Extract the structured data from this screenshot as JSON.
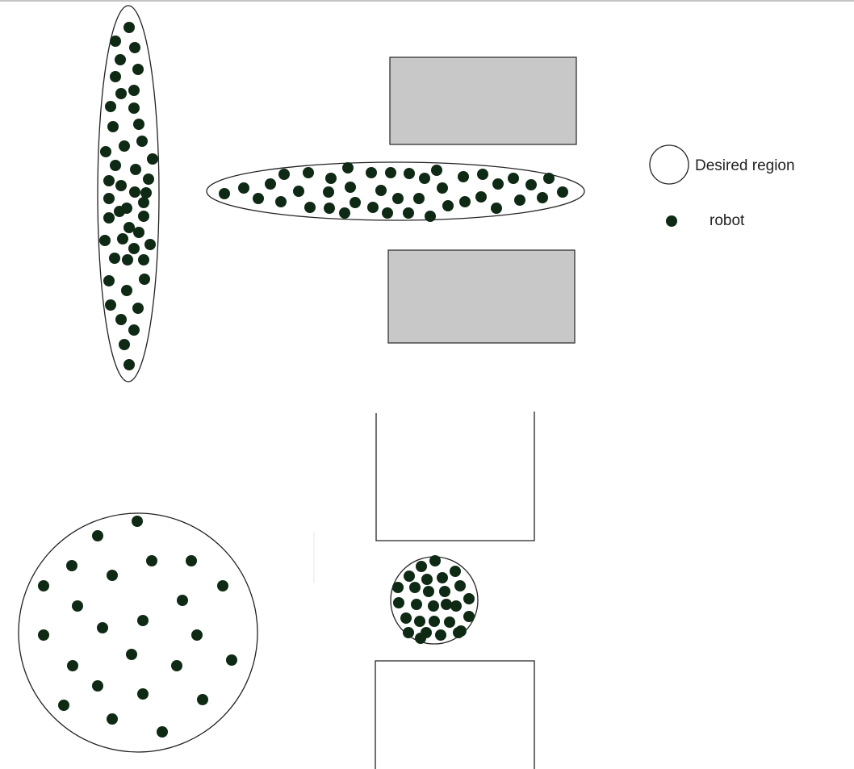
{
  "legend": {
    "desired_region_label": "Desired region",
    "robot_label": "robot"
  },
  "colors": {
    "robot": "#0f2a14",
    "obstacle_fill": "#c8c8c8",
    "outline": "#222222",
    "background": "#ffffff"
  }
}
